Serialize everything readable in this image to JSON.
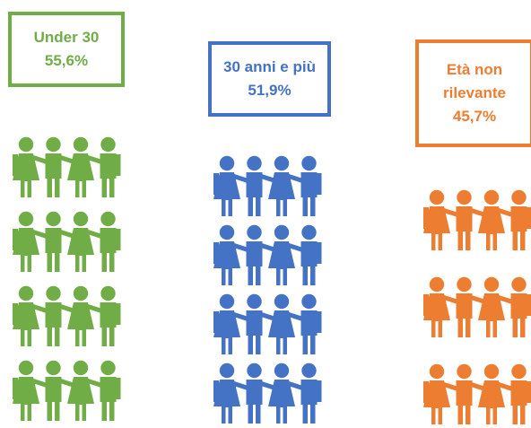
{
  "chart_data": {
    "type": "pictogram",
    "categories": [
      "Under 30",
      "30 anni e più",
      "Età non rilevante"
    ],
    "values": [
      55.6,
      51.9,
      45.7
    ],
    "value_labels": [
      "55,6%",
      "51,9%",
      "45,7%"
    ],
    "label_lines": [
      [
        "Under 30"
      ],
      [
        "30 anni e più"
      ],
      [
        "Età non",
        "rilevante"
      ]
    ],
    "icon_rows": [
      4,
      4,
      3
    ],
    "icons_per_row": 4,
    "icon": "people-group-icon",
    "colors": [
      "#70ad47",
      "#4472c4",
      "#ed7d31"
    ]
  }
}
